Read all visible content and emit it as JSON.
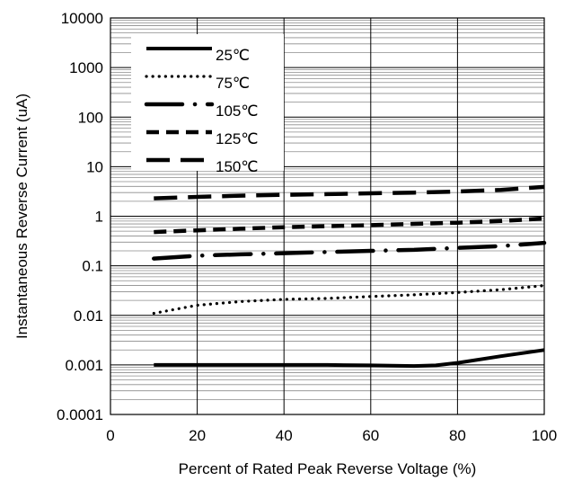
{
  "chart_data": {
    "type": "line",
    "title": "",
    "xlabel": "Percent of Rated Peak Reverse Voltage (%)",
    "ylabel": "Instantaneous Reverse Current (uA)",
    "xlim": [
      0,
      100
    ],
    "ylim": [
      0.0001,
      10000
    ],
    "y_scale": "log",
    "x_ticks": [
      "0",
      "20",
      "40",
      "60",
      "80",
      "100"
    ],
    "y_ticks": [
      "0.0001",
      "0.001",
      "0.01",
      "0.1",
      "1",
      "10",
      "100",
      "1000",
      "10000"
    ],
    "grid": true,
    "legend_position": "top-left",
    "series": [
      {
        "name": "25℃",
        "style": "solid",
        "x": [
          10,
          20,
          30,
          40,
          50,
          60,
          70,
          75,
          80,
          90,
          100
        ],
        "y": [
          0.001,
          0.001,
          0.001,
          0.001,
          0.001,
          0.00098,
          0.00095,
          0.00098,
          0.0011,
          0.0015,
          0.002
        ]
      },
      {
        "name": "75℃",
        "style": "dotted",
        "x": [
          10,
          20,
          30,
          40,
          50,
          60,
          70,
          80,
          90,
          100
        ],
        "y": [
          0.011,
          0.016,
          0.019,
          0.021,
          0.022,
          0.024,
          0.026,
          0.029,
          0.033,
          0.04
        ]
      },
      {
        "name": "105℃",
        "style": "dash-dot",
        "x": [
          10,
          20,
          30,
          40,
          50,
          60,
          70,
          80,
          90,
          100
        ],
        "y": [
          0.14,
          0.16,
          0.17,
          0.18,
          0.19,
          0.2,
          0.21,
          0.23,
          0.25,
          0.29
        ]
      },
      {
        "name": "125℃",
        "style": "short-dash",
        "x": [
          10,
          20,
          30,
          40,
          50,
          60,
          70,
          80,
          90,
          100
        ],
        "y": [
          0.48,
          0.52,
          0.56,
          0.6,
          0.63,
          0.66,
          0.7,
          0.74,
          0.8,
          0.9
        ]
      },
      {
        "name": "150℃",
        "style": "long-dash",
        "x": [
          10,
          20,
          30,
          40,
          50,
          60,
          70,
          80,
          90,
          100
        ],
        "y": [
          2.3,
          2.45,
          2.6,
          2.7,
          2.8,
          2.9,
          3.0,
          3.15,
          3.4,
          3.9
        ]
      }
    ]
  }
}
